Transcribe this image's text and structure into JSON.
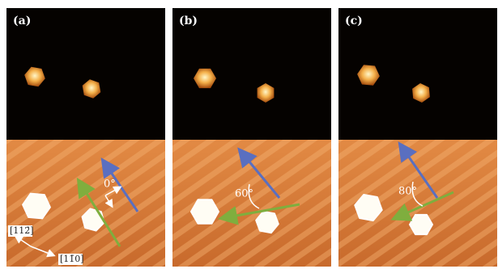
{
  "panels": [
    {
      "label": "(a)",
      "angle": "0°"
    },
    {
      "label": "(b)",
      "angle": "60°"
    },
    {
      "label": "(c)",
      "angle": "80°"
    }
  ],
  "directions": [
    "[112̄]",
    "[11̄0]"
  ]
}
